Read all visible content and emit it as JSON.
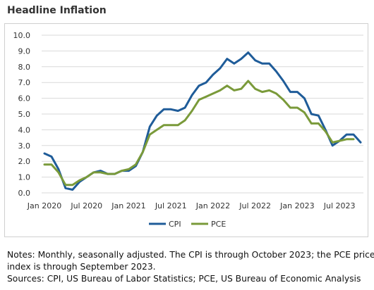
{
  "title": "Headline Inflation",
  "notes": [
    "Notes: Monthly, seasonally adjusted. The CPI is through October 2023; the PCE price",
    "index is through September 2023.",
    "Sources: CPI, US Bureau of Labor Statistics; PCE, US Bureau of Economic Analysis"
  ],
  "chart_data": {
    "type": "line",
    "title": "Headline Inflation",
    "xlabel": "",
    "ylabel": "",
    "ylim": [
      0,
      10
    ],
    "y_ticks": [
      "0.0",
      "1.0",
      "2.0",
      "3.0",
      "4.0",
      "5.0",
      "6.0",
      "7.0",
      "8.0",
      "9.0",
      "10.0"
    ],
    "x_start": "2020-01",
    "x_ticks": [
      {
        "label": "Jan 2020",
        "month_index": 0
      },
      {
        "label": "Jul 2020",
        "month_index": 6
      },
      {
        "label": "Jan 2021",
        "month_index": 12
      },
      {
        "label": "Jul 2021",
        "month_index": 18
      },
      {
        "label": "Jan 2022",
        "month_index": 24
      },
      {
        "label": "Jul 2022",
        "month_index": 30
      },
      {
        "label": "Jan 2023",
        "month_index": 36
      },
      {
        "label": "Jul 2023",
        "month_index": 42
      }
    ],
    "grid": true,
    "legend": "bottom",
    "series": [
      {
        "name": "CPI",
        "color": "#1f5c99",
        "values": [
          2.5,
          2.3,
          1.5,
          0.3,
          0.2,
          0.7,
          1.0,
          1.3,
          1.4,
          1.2,
          1.2,
          1.4,
          1.4,
          1.7,
          2.6,
          4.2,
          4.9,
          5.3,
          5.3,
          5.2,
          5.4,
          6.2,
          6.8,
          7.0,
          7.5,
          7.9,
          8.5,
          8.2,
          8.5,
          8.9,
          8.4,
          8.2,
          8.2,
          7.7,
          7.1,
          6.4,
          6.4,
          6.0,
          5.0,
          4.9,
          4.0,
          3.0,
          3.3,
          3.7,
          3.7,
          3.2
        ],
        "dates": [
          "2020-01",
          "2020-02",
          "2020-03",
          "2020-04",
          "2020-05",
          "2020-06",
          "2020-07",
          "2020-08",
          "2020-09",
          "2020-10",
          "2020-11",
          "2020-12",
          "2021-01",
          "2021-02",
          "2021-03",
          "2021-04",
          "2021-05",
          "2021-06",
          "2021-07",
          "2021-08",
          "2021-09",
          "2021-10",
          "2021-11",
          "2021-12",
          "2022-01",
          "2022-02",
          "2022-03",
          "2022-04",
          "2022-05",
          "2022-06",
          "2022-07",
          "2022-08",
          "2022-09",
          "2022-10",
          "2022-11",
          "2022-12",
          "2023-01",
          "2023-02",
          "2023-03",
          "2023-04",
          "2023-05",
          "2023-06",
          "2023-07",
          "2023-08",
          "2023-09",
          "2023-10"
        ]
      },
      {
        "name": "PCE",
        "color": "#7a9a3a",
        "values": [
          1.8,
          1.8,
          1.3,
          0.5,
          0.5,
          0.8,
          1.0,
          1.3,
          1.3,
          1.2,
          1.2,
          1.4,
          1.5,
          1.8,
          2.6,
          3.7,
          4.0,
          4.3,
          4.3,
          4.3,
          4.6,
          5.2,
          5.9,
          6.1,
          6.3,
          6.5,
          6.8,
          6.5,
          6.6,
          7.1,
          6.6,
          6.4,
          6.5,
          6.3,
          5.9,
          5.4,
          5.4,
          5.1,
          4.4,
          4.4,
          3.9,
          3.2,
          3.3,
          3.4,
          3.4
        ],
        "dates": [
          "2020-01",
          "2020-02",
          "2020-03",
          "2020-04",
          "2020-05",
          "2020-06",
          "2020-07",
          "2020-08",
          "2020-09",
          "2020-10",
          "2020-11",
          "2020-12",
          "2021-01",
          "2021-02",
          "2021-03",
          "2021-04",
          "2021-05",
          "2021-06",
          "2021-07",
          "2021-08",
          "2021-09",
          "2021-10",
          "2021-11",
          "2021-12",
          "2022-01",
          "2022-02",
          "2022-03",
          "2022-04",
          "2022-05",
          "2022-06",
          "2022-07",
          "2022-08",
          "2022-09",
          "2022-10",
          "2022-11",
          "2022-12",
          "2023-01",
          "2023-02",
          "2023-03",
          "2023-04",
          "2023-05",
          "2023-06",
          "2023-07",
          "2023-08",
          "2023-09"
        ]
      }
    ]
  }
}
